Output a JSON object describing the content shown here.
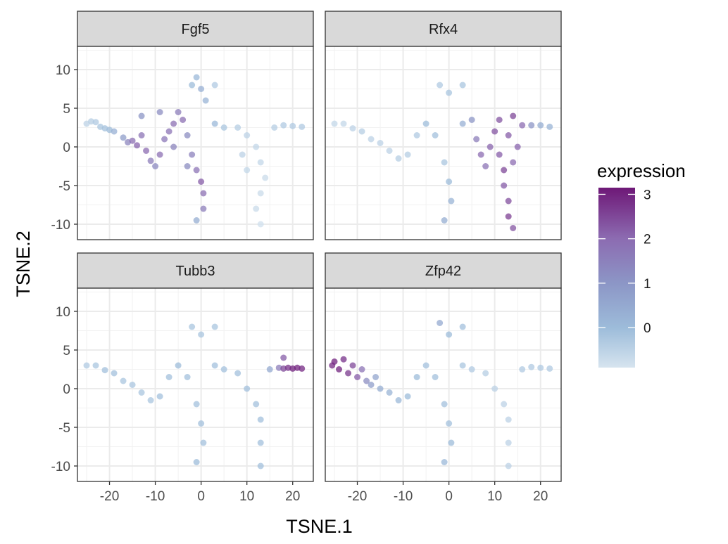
{
  "chart_data": {
    "type": "scatter",
    "facets": [
      "Fgf5",
      "Rfx4",
      "Tubb3",
      "Zfp42"
    ],
    "xlabel": "TSNE.1",
    "ylabel": "TSNE.2",
    "xlim": [
      -27,
      24.5
    ],
    "ylim": [
      -12,
      13
    ],
    "x_ticks": [
      -20,
      -10,
      0,
      10,
      20
    ],
    "y_ticks": [
      -10,
      -5,
      0,
      5,
      10
    ],
    "x_tick_labels": [
      "-20",
      "-10",
      "0",
      "10",
      "20"
    ],
    "y_tick_labels": [
      "-10",
      "-5",
      "0",
      "5",
      "10"
    ],
    "grid": true,
    "legend": {
      "title": "expression",
      "position": "right",
      "range": [
        -0.9,
        3.15
      ],
      "ticks": [
        0,
        1,
        2,
        3
      ],
      "tick_labels": [
        "0",
        "1",
        "2",
        "3"
      ],
      "colors": [
        "#d6e4ef",
        "#9dbcda",
        "#8c6bb1",
        "#6e1877"
      ]
    },
    "panels": [
      {
        "name": "Fgf5",
        "points": [
          [
            -25,
            3,
            -0.5
          ],
          [
            -24,
            3.3,
            -0.4
          ],
          [
            -23,
            3.2,
            -0.3
          ],
          [
            -22,
            2.6,
            -0.2
          ],
          [
            -21,
            2.4,
            -0.1
          ],
          [
            -20,
            2.2,
            0
          ],
          [
            -19,
            2,
            0.3
          ],
          [
            -17,
            1.2,
            0.8
          ],
          [
            -16,
            0.6,
            1.4
          ],
          [
            -15,
            0.8,
            1.9
          ],
          [
            -14,
            0.2,
            2.1
          ],
          [
            -13,
            1.5,
            1.8
          ],
          [
            -12,
            -0.5,
            2
          ],
          [
            -11,
            -1.8,
            1.6
          ],
          [
            -10,
            -2.5,
            1.3
          ],
          [
            -9,
            -1,
            1.9
          ],
          [
            -8,
            1,
            1.7
          ],
          [
            -7,
            2,
            1.8
          ],
          [
            -6,
            3,
            1.9
          ],
          [
            -5,
            4.5,
            1.6
          ],
          [
            -4,
            3.5,
            1.9
          ],
          [
            -3,
            1.5,
            1.2
          ],
          [
            -2,
            -1,
            1.5
          ],
          [
            -1,
            -3,
            1.8
          ],
          [
            0,
            -4.5,
            2.2
          ],
          [
            0.5,
            -6,
            1.9
          ],
          [
            0.5,
            -8,
            1.6
          ],
          [
            -1,
            -9.5,
            0.4
          ],
          [
            -3,
            -2.5,
            1.2
          ],
          [
            -6,
            0,
            1.4
          ],
          [
            -13,
            4,
            1
          ],
          [
            -9,
            4.5,
            1.2
          ],
          [
            -2,
            8,
            0
          ],
          [
            -1,
            9,
            0.1
          ],
          [
            0,
            7.5,
            0.3
          ],
          [
            1,
            6,
            0.2
          ],
          [
            3,
            8,
            -0.3
          ],
          [
            3,
            3,
            0.1
          ],
          [
            5,
            2.5,
            -0.2
          ],
          [
            8,
            2.5,
            -0.4
          ],
          [
            10,
            1.5,
            -0.5
          ],
          [
            12,
            0,
            -0.6
          ],
          [
            13,
            -2,
            -0.6
          ],
          [
            14,
            -4,
            -0.7
          ],
          [
            13,
            -6,
            -0.7
          ],
          [
            12,
            -8,
            -0.7
          ],
          [
            13,
            -10,
            -0.8
          ],
          [
            10,
            -3,
            -0.6
          ],
          [
            9,
            -1,
            -0.5
          ],
          [
            16,
            2.5,
            -0.4
          ],
          [
            18,
            2.8,
            -0.3
          ],
          [
            20,
            2.7,
            -0.3
          ],
          [
            22,
            2.6,
            -0.3
          ]
        ]
      },
      {
        "name": "Rfx4",
        "points": [
          [
            -25,
            3,
            -0.6
          ],
          [
            -23,
            3,
            -0.6
          ],
          [
            -21,
            2.4,
            -0.5
          ],
          [
            -19,
            2,
            -0.4
          ],
          [
            -17,
            1,
            -0.5
          ],
          [
            -15,
            0.5,
            -0.5
          ],
          [
            -13,
            -0.5,
            -0.5
          ],
          [
            -11,
            -1.5,
            -0.4
          ],
          [
            -9,
            -1,
            -0.4
          ],
          [
            -7,
            1.5,
            -0.3
          ],
          [
            -5,
            3,
            0
          ],
          [
            -3,
            1.5,
            -0.1
          ],
          [
            -1,
            -2,
            -0.2
          ],
          [
            0,
            -4.5,
            0
          ],
          [
            0.5,
            -7,
            0.2
          ],
          [
            -1,
            -9.5,
            0.4
          ],
          [
            -2,
            8,
            -0.3
          ],
          [
            0,
            7,
            -0.2
          ],
          [
            3,
            8,
            -0.2
          ],
          [
            3,
            3,
            0.3
          ],
          [
            5,
            3.5,
            1
          ],
          [
            6,
            1,
            1.6
          ],
          [
            7,
            -1,
            2
          ],
          [
            8,
            -2.5,
            1.8
          ],
          [
            9,
            0,
            2.1
          ],
          [
            10,
            2,
            2.3
          ],
          [
            11,
            -1,
            2.2
          ],
          [
            12,
            -3,
            2.5
          ],
          [
            12,
            -5,
            2.2
          ],
          [
            13,
            -7,
            2.4
          ],
          [
            13,
            -9,
            2.6
          ],
          [
            14,
            -10.5,
            2.3
          ],
          [
            14,
            -2,
            2
          ],
          [
            15,
            0,
            2.1
          ],
          [
            13,
            1.5,
            2.2
          ],
          [
            11,
            3.5,
            2.3
          ],
          [
            14,
            4,
            2.5
          ],
          [
            16,
            2.8,
            2
          ],
          [
            18,
            2.8,
            1
          ],
          [
            20,
            2.8,
            0.4
          ],
          [
            22,
            2.6,
            0.2
          ]
        ]
      },
      {
        "name": "Tubb3",
        "points": [
          [
            -25,
            3,
            -0.3
          ],
          [
            -23,
            3,
            -0.2
          ],
          [
            -21,
            2.4,
            -0.1
          ],
          [
            -19,
            2,
            -0.1
          ],
          [
            -17,
            1,
            -0.2
          ],
          [
            -15,
            0.5,
            -0.2
          ],
          [
            -13,
            -0.5,
            -0.2
          ],
          [
            -11,
            -1.5,
            -0.2
          ],
          [
            -9,
            -1,
            -0.1
          ],
          [
            -7,
            1.5,
            -0.1
          ],
          [
            -5,
            3,
            0
          ],
          [
            -3,
            1.5,
            -0.1
          ],
          [
            -1,
            -2,
            -0.1
          ],
          [
            0,
            -4.5,
            -0.1
          ],
          [
            0.5,
            -7,
            -0.1
          ],
          [
            -1,
            -9.5,
            0
          ],
          [
            -2,
            8,
            -0.2
          ],
          [
            0,
            7,
            -0.2
          ],
          [
            3,
            8,
            -0.2
          ],
          [
            3,
            3,
            -0.1
          ],
          [
            5,
            2.5,
            -0.1
          ],
          [
            8,
            2,
            -0.1
          ],
          [
            10,
            0,
            -0.1
          ],
          [
            12,
            -2,
            -0.1
          ],
          [
            13,
            -4,
            -0.1
          ],
          [
            13,
            -7,
            -0.1
          ],
          [
            13,
            -10,
            -0.1
          ],
          [
            15,
            2.5,
            0.5
          ],
          [
            17,
            2.7,
            1.6
          ],
          [
            18,
            2.6,
            2.5
          ],
          [
            19,
            2.7,
            2.8
          ],
          [
            20,
            2.6,
            3
          ],
          [
            21,
            2.7,
            3
          ],
          [
            22,
            2.6,
            2.9
          ],
          [
            18,
            4,
            2.2
          ]
        ]
      },
      {
        "name": "Zfp42",
        "points": [
          [
            -25.5,
            3,
            2.9
          ],
          [
            -25,
            3.5,
            3
          ],
          [
            -24,
            2.5,
            3
          ],
          [
            -23,
            3.8,
            2.8
          ],
          [
            -22,
            2,
            2.7
          ],
          [
            -21,
            3,
            2.5
          ],
          [
            -20,
            1.5,
            2.2
          ],
          [
            -19,
            2.5,
            1.8
          ],
          [
            -18,
            1,
            1.2
          ],
          [
            -17,
            0.5,
            0.8
          ],
          [
            -16,
            1.5,
            0.6
          ],
          [
            -15,
            0,
            0.4
          ],
          [
            -13,
            -0.5,
            0.2
          ],
          [
            -11,
            -1.5,
            0.1
          ],
          [
            -9,
            -1,
            0
          ],
          [
            -7,
            1.5,
            0
          ],
          [
            -5,
            3,
            -0.1
          ],
          [
            -3,
            1.5,
            -0.1
          ],
          [
            -1,
            -2,
            -0.1
          ],
          [
            0,
            -4.5,
            -0.1
          ],
          [
            0.5,
            -7,
            0
          ],
          [
            -1,
            -9.5,
            0.1
          ],
          [
            -2,
            8.5,
            0.5
          ],
          [
            0,
            7,
            0
          ],
          [
            3,
            8,
            -0.1
          ],
          [
            3,
            3,
            -0.2
          ],
          [
            5,
            2.5,
            -0.3
          ],
          [
            8,
            2,
            -0.4
          ],
          [
            10,
            0,
            -0.5
          ],
          [
            12,
            -2,
            -0.5
          ],
          [
            13,
            -4,
            -0.5
          ],
          [
            13,
            -7,
            -0.5
          ],
          [
            13,
            -10,
            -0.5
          ],
          [
            16,
            2.5,
            -0.3
          ],
          [
            18,
            2.8,
            -0.3
          ],
          [
            20,
            2.7,
            -0.3
          ],
          [
            22,
            2.6,
            -0.3
          ]
        ]
      }
    ]
  }
}
